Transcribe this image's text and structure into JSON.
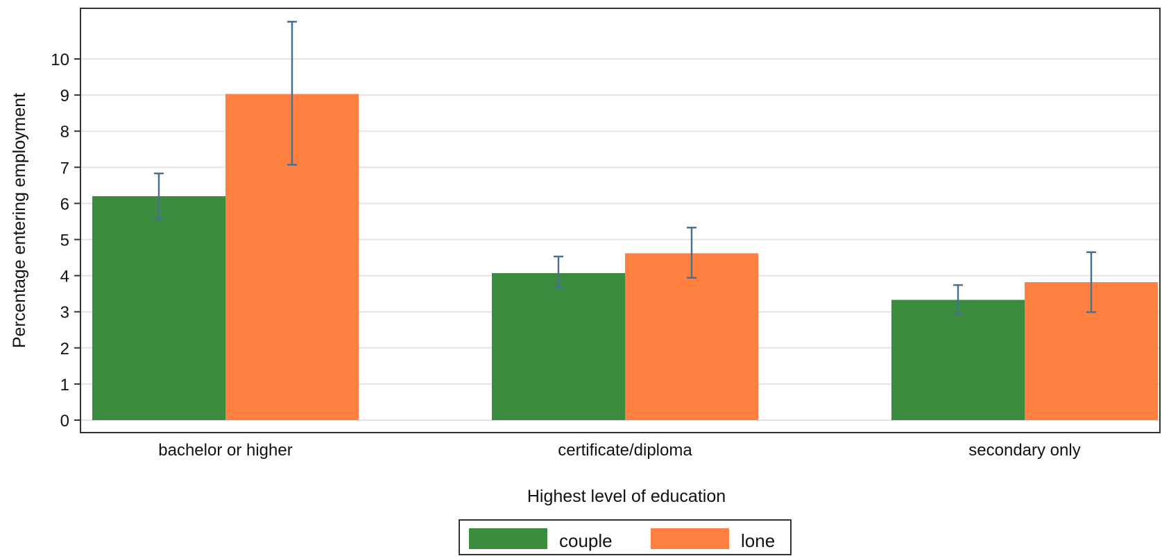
{
  "chart_data": {
    "type": "bar",
    "xlabel": "Highest level of education",
    "ylabel": "Percentage entering employment",
    "categories": [
      "bachelor or higher",
      "certificate/diploma",
      "secondary only"
    ],
    "yticks": [
      0,
      1,
      2,
      3,
      4,
      5,
      6,
      7,
      8,
      9,
      10
    ],
    "ylim": [
      -0.35,
      11.4
    ],
    "grid": true,
    "legend_position": "bottom-center",
    "series": [
      {
        "name": "couple",
        "color": "#3b8c3e",
        "values": [
          6.2,
          4.07,
          3.33
        ],
        "ci_low": [
          5.57,
          3.66,
          2.91
        ],
        "ci_high": [
          6.83,
          4.53,
          3.74
        ]
      },
      {
        "name": "lone",
        "color": "#ff8040",
        "values": [
          9.03,
          4.62,
          3.82
        ],
        "ci_low": [
          7.07,
          3.94,
          2.99
        ],
        "ci_high": [
          11.03,
          5.33,
          4.65
        ]
      }
    ],
    "error_bar_color": "#4a6f8f",
    "grid_color": "#e3e3e3"
  }
}
